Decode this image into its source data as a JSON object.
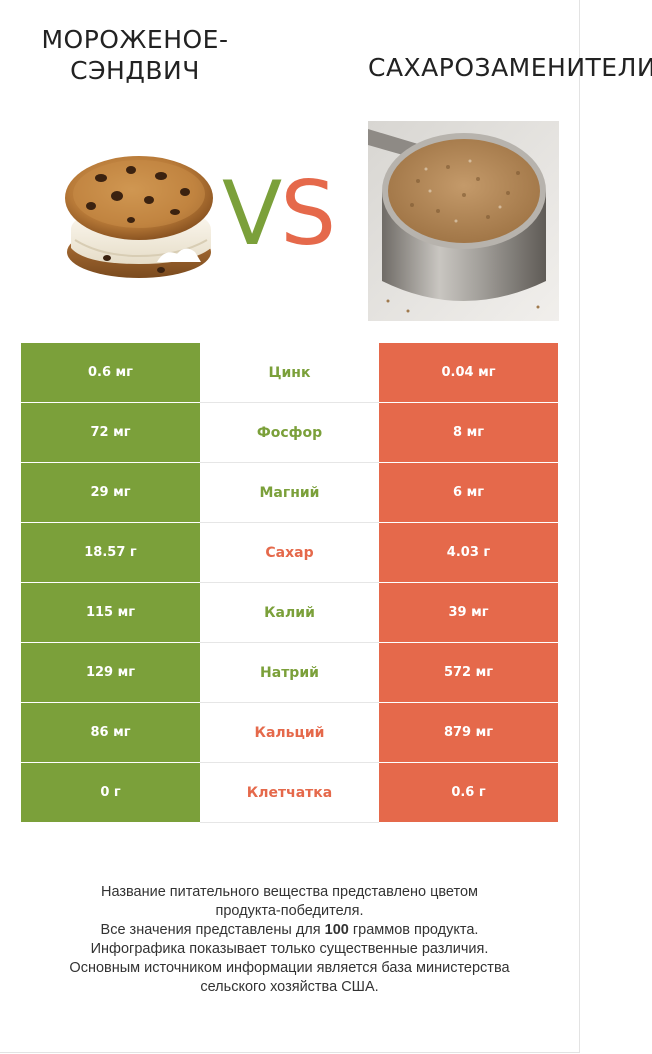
{
  "products": {
    "left": {
      "name": "МОРОЖЕНОЕ-\nСЭНДВИЧ",
      "name_line1": "МОРОЖЕНОЕ-",
      "name_line2": "СЭНДВИЧ",
      "color": "#7ba03a",
      "image": "ice-cream-sandwich"
    },
    "right": {
      "name": "САХАРОЗАМЕНИТЕЛИ",
      "color": "#e5694b",
      "image": "sugar-substitute-measuring-cup"
    }
  },
  "vs": {
    "v": "V",
    "s": "S"
  },
  "rows": [
    {
      "nutrient": "Цинк",
      "left": "0.6 мг",
      "right": "0.04 мг",
      "winner": "left"
    },
    {
      "nutrient": "Фосфор",
      "left": "72 мг",
      "right": "8 мг",
      "winner": "left"
    },
    {
      "nutrient": "Магний",
      "left": "29 мг",
      "right": "6 мг",
      "winner": "left"
    },
    {
      "nutrient": "Сахар",
      "left": "18.57 г",
      "right": "4.03 г",
      "winner": "right"
    },
    {
      "nutrient": "Калий",
      "left": "115 мг",
      "right": "39 мг",
      "winner": "left"
    },
    {
      "nutrient": "Натрий",
      "left": "129 мг",
      "right": "572 мг",
      "winner": "left"
    },
    {
      "nutrient": "Кальций",
      "left": "86 мг",
      "right": "879 мг",
      "winner": "right"
    },
    {
      "nutrient": "Клетчатка",
      "left": "0 г",
      "right": "0.6 г",
      "winner": "right"
    }
  ],
  "footnote": {
    "line1": "Название питательного вещества представлено цветом",
    "line2": "продукта-победителя.",
    "line3_pre": "Все значения представлены для ",
    "line3_bold": "100",
    "line3_post": " граммов продукта.",
    "line4": "Инфографика показывает только существенные различия.",
    "line5": "Основным источником информации является база министерства",
    "line6": "сельского хозяйства США."
  }
}
